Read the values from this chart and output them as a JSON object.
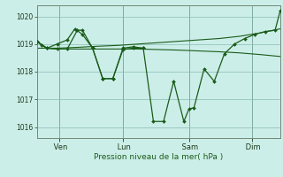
{
  "background_color": "#cceee8",
  "grid_color": "#88bbb4",
  "line_color": "#1a5c1a",
  "ylabel_text": "Pression niveau de la mer( hPa )",
  "ylim": [
    1015.6,
    1020.4
  ],
  "yticks": [
    1016,
    1017,
    1018,
    1019,
    1020
  ],
  "xtick_labels": [
    " Ven",
    " Lun",
    " Sam",
    " Dim"
  ],
  "xtick_positions": [
    9,
    34,
    60,
    85
  ],
  "xlim": [
    0,
    96
  ],
  "line_volatile": [
    0,
    1019.1,
    2,
    1018.95,
    4,
    1018.85,
    8,
    1019.0,
    12,
    1019.15,
    15,
    1019.55,
    18,
    1019.35,
    22,
    1018.85,
    26,
    1017.75,
    30,
    1017.75,
    34,
    1018.85,
    38,
    1018.9,
    42,
    1018.85,
    46,
    1016.2,
    50,
    1016.2,
    54,
    1017.65,
    58,
    1016.2,
    60,
    1016.65,
    62,
    1016.7,
    66,
    1018.1,
    70,
    1017.65,
    74,
    1018.65,
    78,
    1019.0,
    82,
    1019.2,
    86,
    1019.35,
    90,
    1019.45,
    94,
    1019.5,
    96,
    1020.2
  ],
  "line_smooth": [
    0,
    1018.85,
    8,
    1018.85,
    16,
    1018.88,
    24,
    1018.92,
    32,
    1018.95,
    40,
    1019.0,
    48,
    1019.05,
    56,
    1019.1,
    64,
    1019.15,
    72,
    1019.2,
    80,
    1019.28,
    88,
    1019.4,
    96,
    1019.55
  ],
  "line_mid": [
    0,
    1019.1,
    4,
    1018.85,
    8,
    1018.82,
    12,
    1018.82,
    16,
    1019.5,
    18,
    1019.5,
    22,
    1018.85,
    26,
    1017.75,
    30,
    1017.75,
    34,
    1018.8,
    38,
    1018.85,
    42,
    1018.85
  ],
  "line_flat": [
    0,
    1019.1,
    4,
    1018.85,
    8,
    1018.82,
    16,
    1018.82,
    24,
    1018.82,
    32,
    1018.82,
    40,
    1018.82,
    48,
    1018.8,
    56,
    1018.78,
    64,
    1018.75,
    72,
    1018.72,
    80,
    1018.68,
    88,
    1018.62,
    96,
    1018.55
  ],
  "figsize": [
    3.2,
    2.0
  ],
  "dpi": 100
}
